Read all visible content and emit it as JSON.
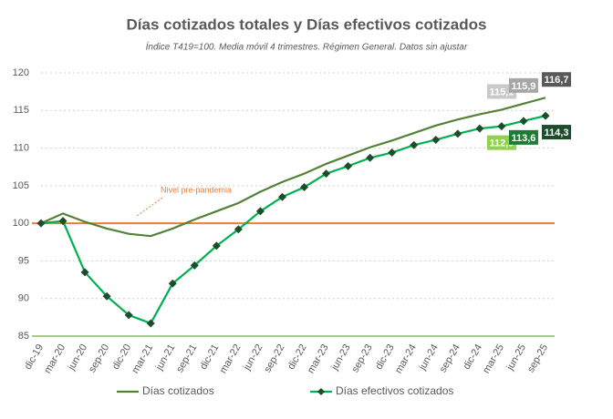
{
  "chart_data": {
    "type": "line",
    "title": "Días cotizados totales y Días efectivos cotizados",
    "subtitle": "Índice T419=100. Media móvil 4 trimestres. Régimen General. Datos sin ajustar",
    "categories": [
      "dic-19",
      "mar-20",
      "jun-20",
      "sep-20",
      "dic-20",
      "mar-21",
      "jun-21",
      "sep-21",
      "dic-21",
      "mar-22",
      "jun-22",
      "sep-22",
      "dic-22",
      "mar-23",
      "jun-23",
      "sep-23",
      "dic-23",
      "mar-24",
      "jun-24",
      "sep-24",
      "dic-24",
      "mar-25",
      "jun-25",
      "sep-25"
    ],
    "series": [
      {
        "name": "Días cotizados",
        "color": "#548235",
        "values": [
          100,
          101.3,
          100.2,
          99.3,
          98.6,
          98.3,
          99.3,
          100.5,
          101.6,
          102.7,
          104.2,
          105.5,
          106.6,
          107.9,
          109.0,
          110.1,
          111.0,
          112.0,
          113.0,
          113.8,
          114.5,
          115.1,
          115.9,
          116.7
        ],
        "value_labels": [
          null,
          null,
          null,
          null,
          null,
          null,
          null,
          null,
          null,
          null,
          null,
          null,
          null,
          null,
          null,
          null,
          null,
          null,
          null,
          null,
          null,
          "115,1",
          "115,9",
          "116,7"
        ],
        "label_colors": [
          null,
          null,
          null,
          null,
          null,
          null,
          null,
          null,
          null,
          null,
          null,
          null,
          null,
          null,
          null,
          null,
          null,
          null,
          null,
          null,
          null,
          "#c9c9c9",
          "#a6a6a6",
          "#595959"
        ]
      },
      {
        "name": "Días efectivos cotizados",
        "color": "#00b050",
        "marker_color": "#1e4d2b",
        "values": [
          100,
          100.3,
          93.5,
          90.3,
          87.8,
          86.7,
          92.0,
          94.4,
          97.0,
          99.2,
          101.6,
          103.5,
          104.8,
          106.6,
          107.6,
          108.7,
          109.4,
          110.4,
          111.1,
          111.9,
          112.6,
          112.9,
          113.6,
          114.3
        ],
        "value_labels": [
          null,
          null,
          null,
          null,
          null,
          null,
          null,
          null,
          null,
          null,
          null,
          null,
          null,
          null,
          null,
          null,
          null,
          null,
          null,
          null,
          null,
          "112,9",
          "113,6",
          "114,3"
        ],
        "label_colors": [
          null,
          null,
          null,
          null,
          null,
          null,
          null,
          null,
          null,
          null,
          null,
          null,
          null,
          null,
          null,
          null,
          null,
          null,
          null,
          null,
          null,
          "#92d050",
          "#1e7b34",
          "#1e4d2b"
        ]
      }
    ],
    "reference_line": {
      "value": 100,
      "label": "Nivel pre-pandemia",
      "color": "#ed7d31"
    },
    "ylim": [
      85,
      120
    ],
    "yticks": [
      85,
      90,
      95,
      100,
      105,
      110,
      115,
      120
    ],
    "grid": true,
    "legend": "bottom"
  }
}
